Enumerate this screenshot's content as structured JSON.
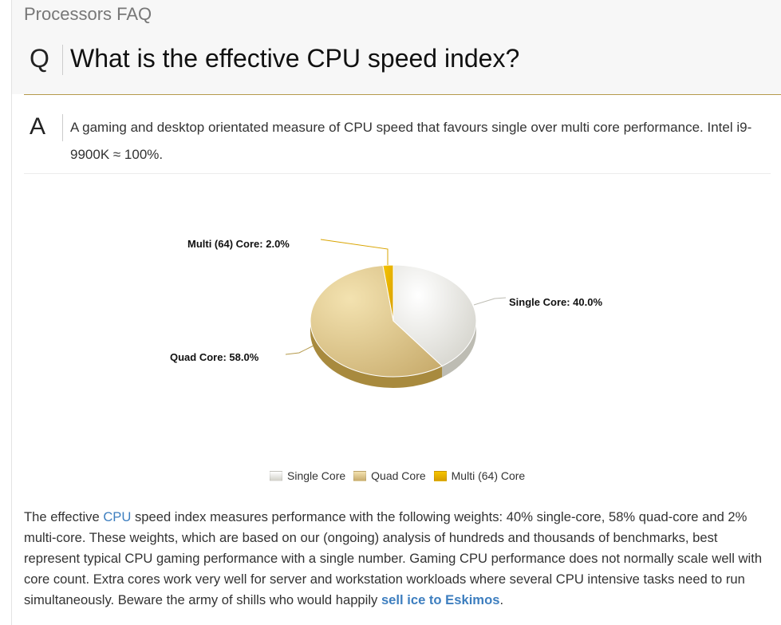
{
  "header": {
    "section_title": "Processors FAQ",
    "q_letter": "Q",
    "question": "What is the effective CPU speed index?"
  },
  "answer": {
    "a_letter": "A",
    "text": "A gaming and desktop orientated measure of CPU speed that favours single over multi core performance. Intel i9-9900K ≈ 100%."
  },
  "chart_data": {
    "type": "pie",
    "title": "",
    "slices": [
      {
        "name": "Single Core",
        "value": 40.0,
        "label": "Single Core: 40.0%",
        "color": "#dcdbd4"
      },
      {
        "name": "Quad Core",
        "value": 58.0,
        "label": "Quad Core: 58.0%",
        "color": "#d8c28a"
      },
      {
        "name": "Multi (64) Core",
        "value": 2.0,
        "label": "Multi (64) Core: 2.0%",
        "color": "#e6b400"
      }
    ],
    "legend": [
      "Single Core",
      "Quad Core",
      "Multi (64) Core"
    ],
    "legend_position": "bottom-center"
  },
  "body": {
    "part1": "The effective ",
    "cpu_link": "CPU",
    "part2": " speed index measures performance with the following weights: 40% single-core, 58% quad-core and 2% multi-core. These weights, which are based on our (ongoing) analysis of hundreds and thousands of benchmarks, best represent typical CPU gaming performance with a single number. Gaming CPU performance does not normally scale well with core count. Extra cores work very well for server and workstation workloads where several CPU intensive tasks need to run simultaneously. Beware the army of shills who would happily ",
    "eskimos_link": "sell ice to Eskimos",
    "part3": "."
  },
  "colors": {
    "accent_rule": "#b59a4c",
    "link": "#3d7ebf"
  }
}
